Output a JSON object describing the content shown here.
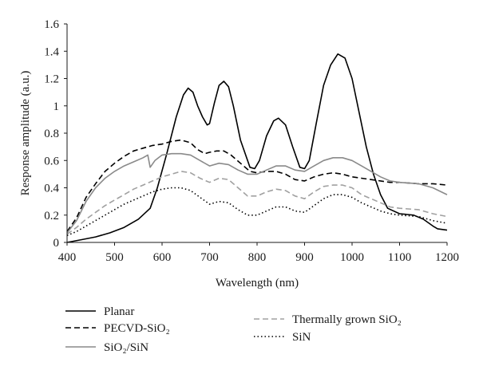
{
  "chart_data": {
    "type": "line",
    "xlabel": "Wavelength (nm)",
    "ylabel": "Response amplitude (a.u.)",
    "xlim": [
      400,
      1200
    ],
    "ylim": [
      0,
      1.6
    ],
    "xticks": [
      400,
      500,
      600,
      700,
      800,
      900,
      1000,
      1100,
      1200
    ],
    "yticks": [
      0,
      0.2,
      0.4,
      0.6,
      0.8,
      1,
      1.2,
      1.4,
      1.6
    ],
    "xtick_labels": [
      "400",
      "500",
      "600",
      "700",
      "800",
      "900",
      "1000",
      "1100",
      "1200"
    ],
    "ytick_labels": [
      "0",
      "0.2",
      "0.4",
      "0.6",
      "0.8",
      "1",
      "1.2",
      "1.4",
      "1.6"
    ],
    "grid": false,
    "legend_position": "bottom",
    "series": [
      {
        "name": "Planar",
        "color": "#000000",
        "style": "solid",
        "points": [
          [
            400,
            0
          ],
          [
            430,
            0.02
          ],
          [
            460,
            0.04
          ],
          [
            490,
            0.07
          ],
          [
            520,
            0.11
          ],
          [
            550,
            0.17
          ],
          [
            575,
            0.25
          ],
          [
            590,
            0.4
          ],
          [
            610,
            0.65
          ],
          [
            630,
            0.92
          ],
          [
            645,
            1.08
          ],
          [
            655,
            1.13
          ],
          [
            665,
            1.1
          ],
          [
            675,
            1.0
          ],
          [
            685,
            0.92
          ],
          [
            695,
            0.86
          ],
          [
            700,
            0.87
          ],
          [
            710,
            1.02
          ],
          [
            720,
            1.15
          ],
          [
            730,
            1.18
          ],
          [
            740,
            1.14
          ],
          [
            750,
            1.0
          ],
          [
            765,
            0.75
          ],
          [
            785,
            0.55
          ],
          [
            795,
            0.54
          ],
          [
            805,
            0.6
          ],
          [
            820,
            0.78
          ],
          [
            835,
            0.89
          ],
          [
            845,
            0.91
          ],
          [
            860,
            0.86
          ],
          [
            875,
            0.7
          ],
          [
            890,
            0.55
          ],
          [
            900,
            0.54
          ],
          [
            910,
            0.6
          ],
          [
            925,
            0.88
          ],
          [
            940,
            1.15
          ],
          [
            955,
            1.3
          ],
          [
            970,
            1.38
          ],
          [
            985,
            1.35
          ],
          [
            1000,
            1.2
          ],
          [
            1015,
            0.95
          ],
          [
            1030,
            0.7
          ],
          [
            1045,
            0.5
          ],
          [
            1060,
            0.35
          ],
          [
            1075,
            0.25
          ],
          [
            1100,
            0.21
          ],
          [
            1130,
            0.2
          ],
          [
            1150,
            0.17
          ],
          [
            1170,
            0.12
          ],
          [
            1180,
            0.1
          ],
          [
            1200,
            0.09
          ]
        ]
      },
      {
        "name": "PECVD-SiO2",
        "color": "#000000",
        "style": "dashed",
        "points": [
          [
            400,
            0.08
          ],
          [
            420,
            0.18
          ],
          [
            440,
            0.33
          ],
          [
            460,
            0.43
          ],
          [
            480,
            0.52
          ],
          [
            500,
            0.58
          ],
          [
            520,
            0.63
          ],
          [
            540,
            0.67
          ],
          [
            560,
            0.69
          ],
          [
            580,
            0.71
          ],
          [
            600,
            0.72
          ],
          [
            620,
            0.74
          ],
          [
            640,
            0.75
          ],
          [
            660,
            0.73
          ],
          [
            675,
            0.68
          ],
          [
            690,
            0.65
          ],
          [
            700,
            0.66
          ],
          [
            715,
            0.67
          ],
          [
            730,
            0.67
          ],
          [
            745,
            0.64
          ],
          [
            765,
            0.58
          ],
          [
            785,
            0.52
          ],
          [
            800,
            0.51
          ],
          [
            820,
            0.52
          ],
          [
            840,
            0.52
          ],
          [
            860,
            0.5
          ],
          [
            880,
            0.46
          ],
          [
            900,
            0.45
          ],
          [
            920,
            0.48
          ],
          [
            940,
            0.5
          ],
          [
            960,
            0.51
          ],
          [
            980,
            0.5
          ],
          [
            1000,
            0.48
          ],
          [
            1020,
            0.47
          ],
          [
            1040,
            0.46
          ],
          [
            1060,
            0.45
          ],
          [
            1080,
            0.44
          ],
          [
            1100,
            0.44
          ],
          [
            1140,
            0.43
          ],
          [
            1170,
            0.43
          ],
          [
            1200,
            0.42
          ]
        ]
      },
      {
        "name": "SiO2/SiN",
        "color": "#8a8a8a",
        "style": "solid",
        "points": [
          [
            400,
            0.07
          ],
          [
            420,
            0.16
          ],
          [
            440,
            0.3
          ],
          [
            460,
            0.4
          ],
          [
            480,
            0.47
          ],
          [
            500,
            0.52
          ],
          [
            520,
            0.56
          ],
          [
            540,
            0.59
          ],
          [
            560,
            0.62
          ],
          [
            570,
            0.64
          ],
          [
            575,
            0.55
          ],
          [
            585,
            0.6
          ],
          [
            600,
            0.64
          ],
          [
            620,
            0.65
          ],
          [
            640,
            0.65
          ],
          [
            660,
            0.64
          ],
          [
            680,
            0.6
          ],
          [
            700,
            0.56
          ],
          [
            720,
            0.58
          ],
          [
            740,
            0.57
          ],
          [
            760,
            0.53
          ],
          [
            780,
            0.5
          ],
          [
            800,
            0.5
          ],
          [
            820,
            0.53
          ],
          [
            840,
            0.56
          ],
          [
            860,
            0.56
          ],
          [
            880,
            0.53
          ],
          [
            900,
            0.52
          ],
          [
            920,
            0.56
          ],
          [
            940,
            0.6
          ],
          [
            960,
            0.62
          ],
          [
            980,
            0.62
          ],
          [
            1000,
            0.6
          ],
          [
            1020,
            0.56
          ],
          [
            1040,
            0.52
          ],
          [
            1060,
            0.48
          ],
          [
            1080,
            0.45
          ],
          [
            1100,
            0.44
          ],
          [
            1140,
            0.43
          ],
          [
            1170,
            0.4
          ],
          [
            1200,
            0.35
          ]
        ]
      },
      {
        "name": "Thermally grown SiO2",
        "color": "#a0a0a0",
        "style": "dashed",
        "points": [
          [
            400,
            0.06
          ],
          [
            420,
            0.11
          ],
          [
            440,
            0.17
          ],
          [
            460,
            0.22
          ],
          [
            480,
            0.27
          ],
          [
            500,
            0.31
          ],
          [
            520,
            0.35
          ],
          [
            540,
            0.39
          ],
          [
            560,
            0.42
          ],
          [
            580,
            0.45
          ],
          [
            600,
            0.48
          ],
          [
            620,
            0.5
          ],
          [
            640,
            0.52
          ],
          [
            660,
            0.51
          ],
          [
            680,
            0.47
          ],
          [
            700,
            0.44
          ],
          [
            720,
            0.47
          ],
          [
            740,
            0.46
          ],
          [
            760,
            0.4
          ],
          [
            780,
            0.34
          ],
          [
            800,
            0.34
          ],
          [
            820,
            0.37
          ],
          [
            840,
            0.39
          ],
          [
            860,
            0.38
          ],
          [
            880,
            0.34
          ],
          [
            900,
            0.32
          ],
          [
            920,
            0.37
          ],
          [
            940,
            0.41
          ],
          [
            960,
            0.42
          ],
          [
            980,
            0.42
          ],
          [
            1000,
            0.4
          ],
          [
            1020,
            0.35
          ],
          [
            1040,
            0.32
          ],
          [
            1060,
            0.29
          ],
          [
            1080,
            0.26
          ],
          [
            1100,
            0.25
          ],
          [
            1140,
            0.24
          ],
          [
            1170,
            0.21
          ],
          [
            1200,
            0.19
          ]
        ]
      },
      {
        "name": "SiN",
        "color": "#000000",
        "style": "dotted",
        "points": [
          [
            400,
            0.05
          ],
          [
            420,
            0.08
          ],
          [
            440,
            0.12
          ],
          [
            460,
            0.16
          ],
          [
            480,
            0.2
          ],
          [
            500,
            0.24
          ],
          [
            520,
            0.28
          ],
          [
            540,
            0.31
          ],
          [
            560,
            0.34
          ],
          [
            580,
            0.37
          ],
          [
            600,
            0.39
          ],
          [
            620,
            0.4
          ],
          [
            640,
            0.4
          ],
          [
            660,
            0.38
          ],
          [
            680,
            0.33
          ],
          [
            700,
            0.28
          ],
          [
            720,
            0.3
          ],
          [
            740,
            0.29
          ],
          [
            760,
            0.24
          ],
          [
            780,
            0.2
          ],
          [
            800,
            0.2
          ],
          [
            820,
            0.23
          ],
          [
            840,
            0.26
          ],
          [
            860,
            0.26
          ],
          [
            880,
            0.23
          ],
          [
            900,
            0.22
          ],
          [
            920,
            0.27
          ],
          [
            940,
            0.32
          ],
          [
            960,
            0.35
          ],
          [
            980,
            0.35
          ],
          [
            1000,
            0.33
          ],
          [
            1020,
            0.29
          ],
          [
            1040,
            0.26
          ],
          [
            1060,
            0.23
          ],
          [
            1080,
            0.21
          ],
          [
            1100,
            0.2
          ],
          [
            1140,
            0.19
          ],
          [
            1170,
            0.16
          ],
          [
            1200,
            0.14
          ]
        ]
      }
    ]
  }
}
